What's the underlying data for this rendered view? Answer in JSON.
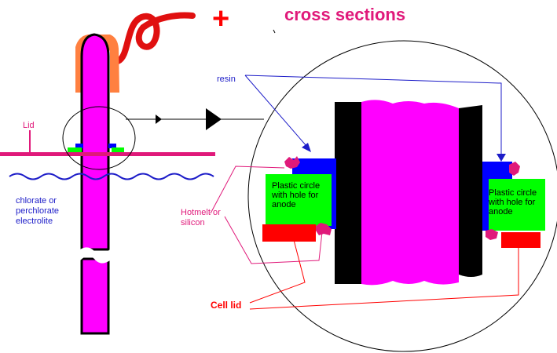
{
  "diagram": {
    "title": "cross sections",
    "polarity_symbol": "+",
    "labels": {
      "lid": "Lid",
      "electrolyte": "chlorate or\nperchlorate\nelectrolite",
      "resin": "resin",
      "hotmelt": "Hotmelt or\nsilicon",
      "cell_lid": "Cell lid",
      "plastic_circle_left": "Plastic circle\nwith  hole for\nanode",
      "plastic_circle_right": "Plastic circle\nwith  hole for\nanode"
    },
    "colors": {
      "anode": "#ff00ff",
      "electrode_edge": "#000000",
      "lid_bar": "#e0197a",
      "resin": "#0000ff",
      "plastic_circle": "#00ff00",
      "cell_lid": "#ff0000",
      "clip": "#ff8040",
      "wire": "#e01010",
      "hotmelt": "#e0197a",
      "leader_lines": "#1c1cc8",
      "electrolyte_wave": "#1c1cc8"
    }
  }
}
